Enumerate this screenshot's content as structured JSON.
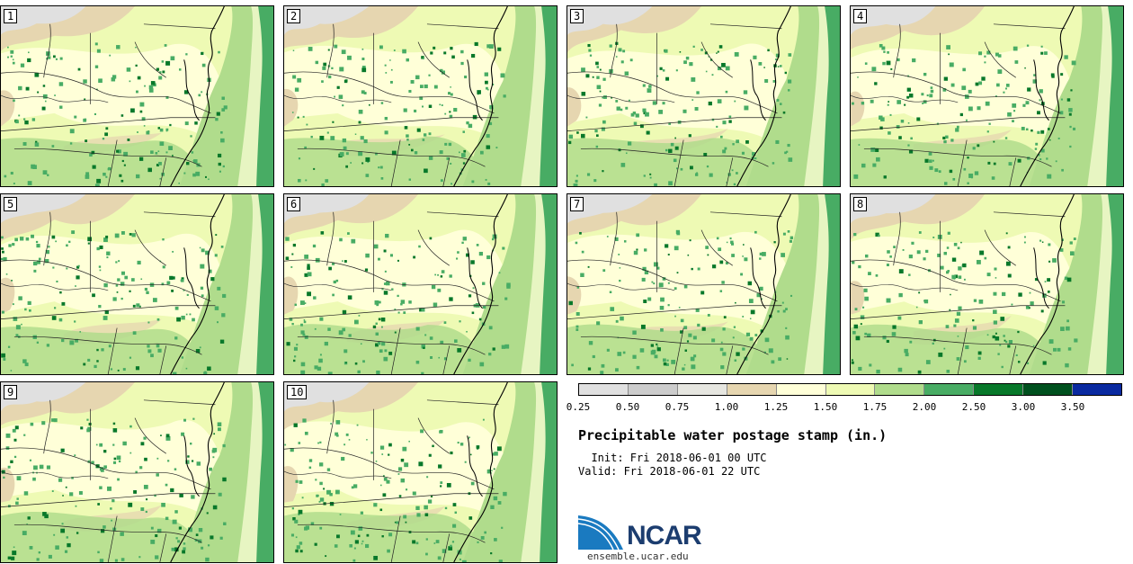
{
  "panels": [
    {
      "label": "1"
    },
    {
      "label": "2"
    },
    {
      "label": "3"
    },
    {
      "label": "4"
    },
    {
      "label": "5"
    },
    {
      "label": "6"
    },
    {
      "label": "7"
    },
    {
      "label": "8"
    },
    {
      "label": "9"
    },
    {
      "label": "10"
    }
  ],
  "colorbar": {
    "colors": [
      "#e0e0e0",
      "#cccccc",
      "#e6e6e0",
      "#e6d6b0",
      "#ffffd8",
      "#eefab4",
      "#b0dc8c",
      "#48ac64",
      "#08782a",
      "#00501e",
      "#0a2aa0"
    ],
    "ticks": [
      "0.25",
      "0.50",
      "0.75",
      "1.00",
      "1.25",
      "1.50",
      "1.75",
      "2.00",
      "2.50",
      "3.00",
      "3.50"
    ]
  },
  "title": "Precipitable water postage stamp (in.)",
  "init": "  Init: Fri 2018-06-01 00 UTC",
  "valid": "Valid: Fri 2018-06-01 22 UTC",
  "logo": {
    "text": "NCAR",
    "colors": {
      "swoosh": "#1a7ac0",
      "text": "#1c3d6f"
    }
  },
  "site": "ensemble.ucar.edu"
}
